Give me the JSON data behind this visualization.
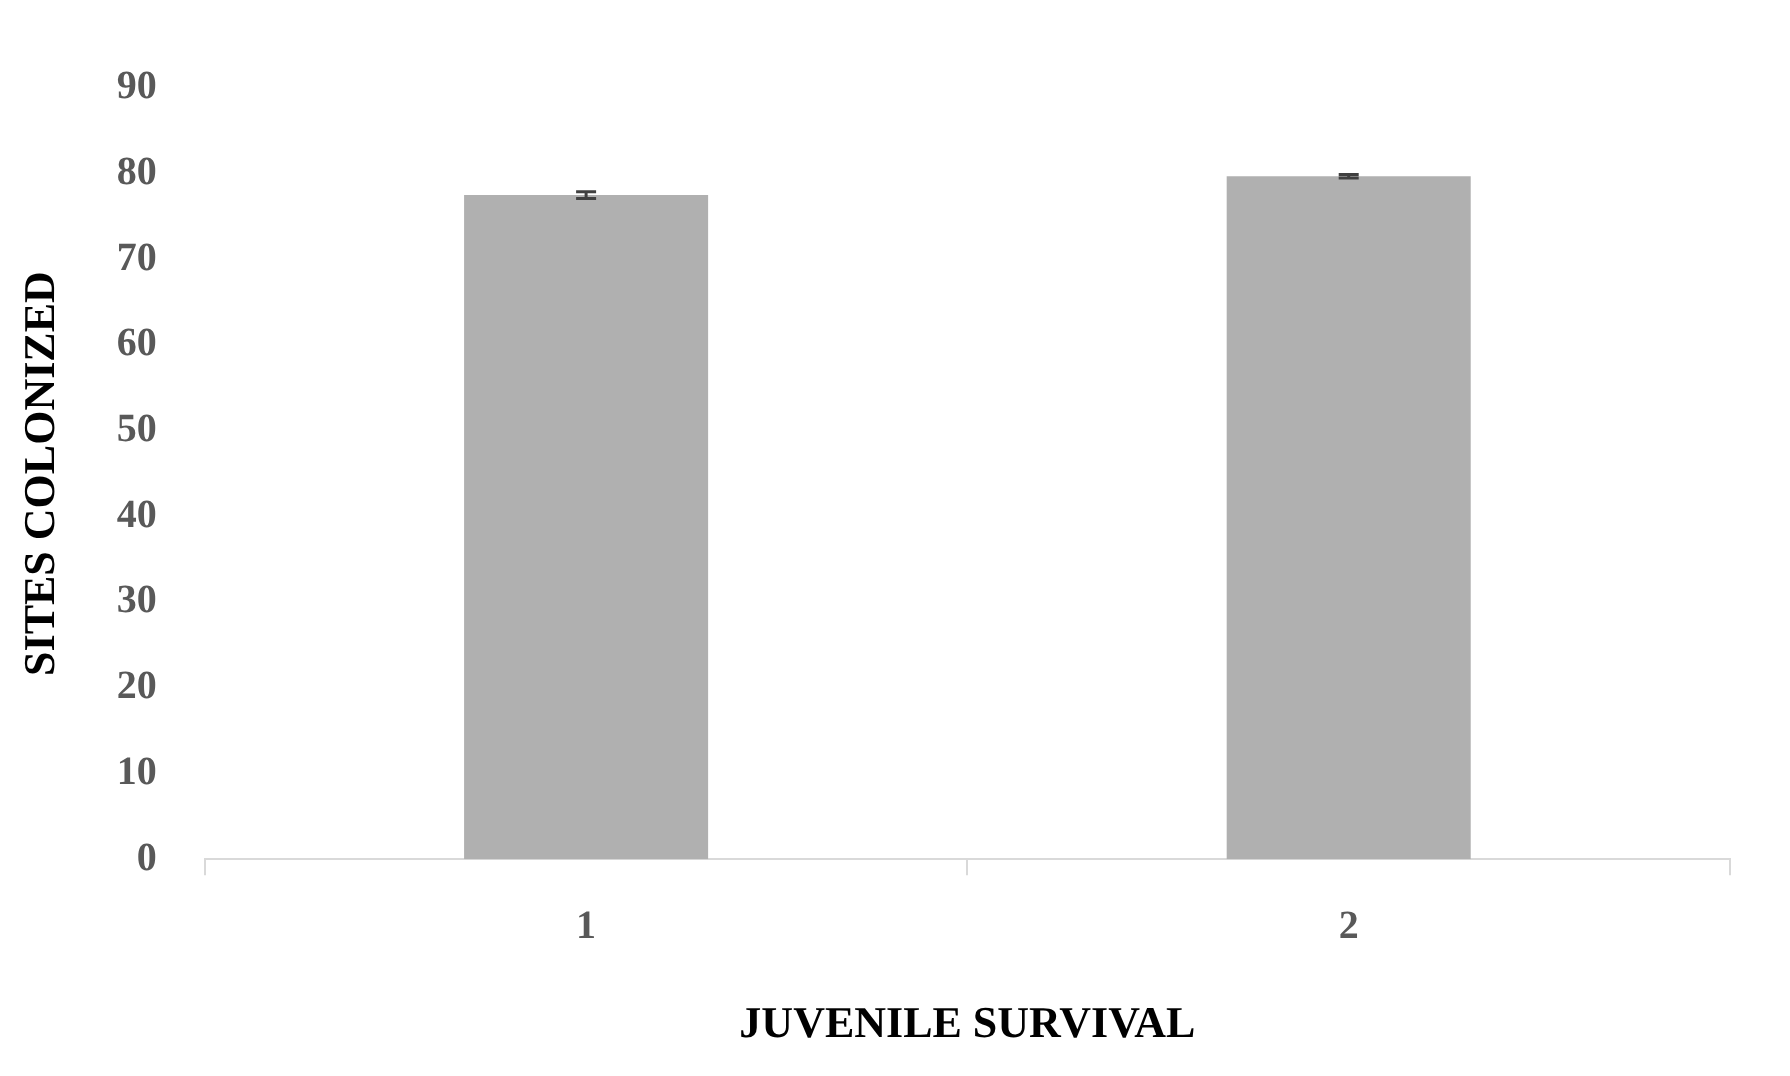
{
  "chart_data": {
    "type": "bar",
    "xlabel": "JUVENILE SURVIVAL",
    "ylabel": "SITES COLONIZED",
    "categories": [
      "1",
      "2"
    ],
    "values": [
      77.5,
      79.7
    ],
    "errors": [
      0.4,
      0.2
    ],
    "color": "#b0b0b0",
    "ylim": [
      0,
      90
    ],
    "yticks": [
      0,
      10,
      20,
      30,
      40,
      50,
      60,
      70,
      80,
      90
    ],
    "grid": false,
    "legend": false
  }
}
